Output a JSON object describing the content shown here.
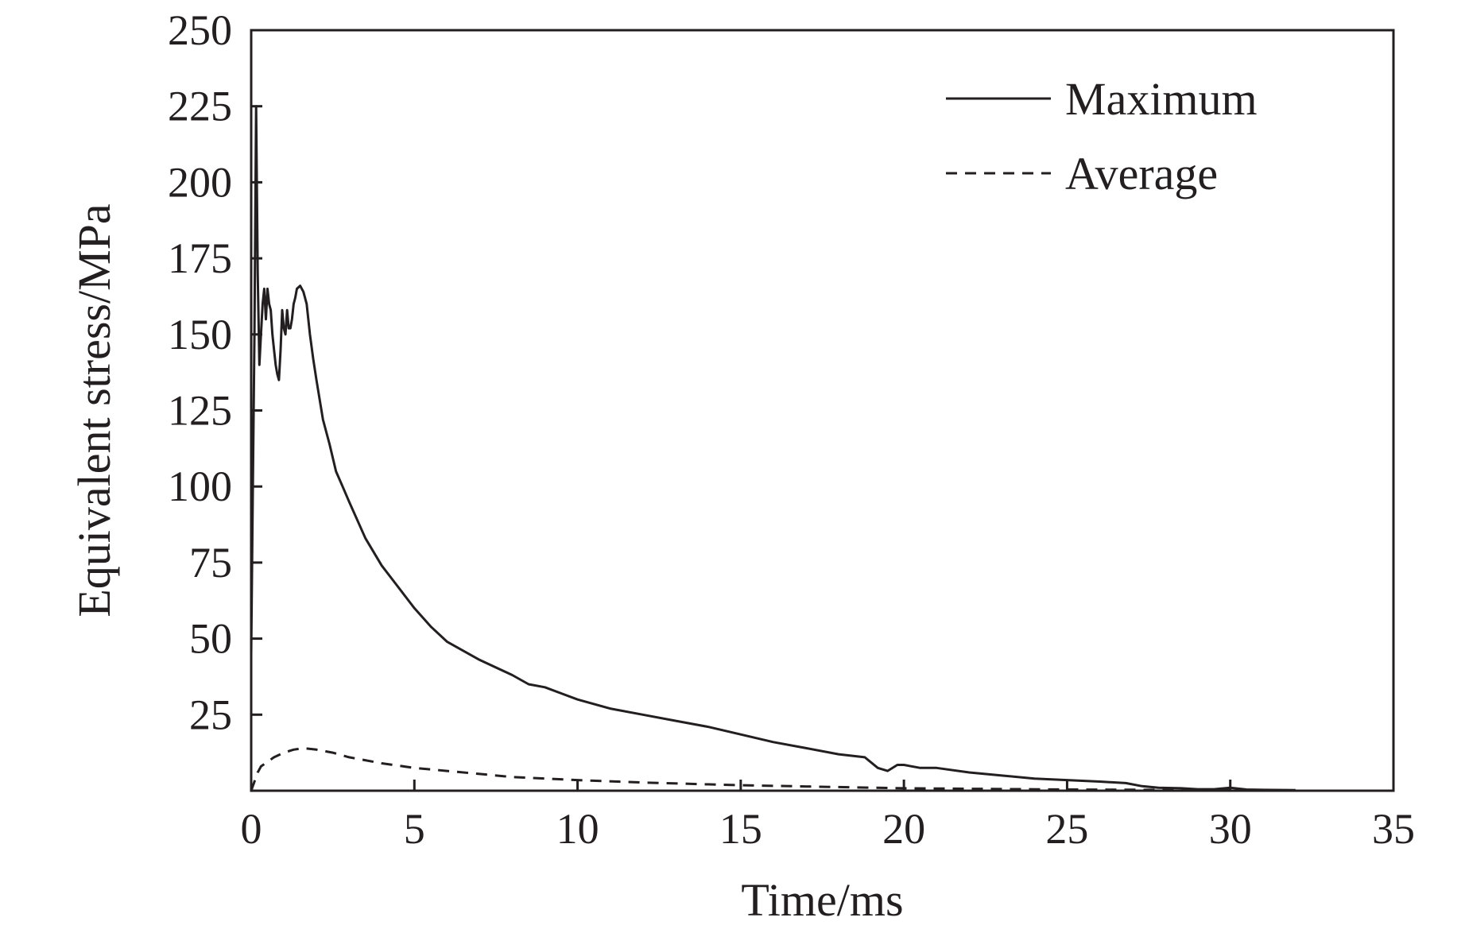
{
  "chart_data": {
    "type": "line",
    "title": "",
    "xlabel": "Time/ms",
    "ylabel": "Equivalent stress/MPa",
    "xlim": [
      0,
      35
    ],
    "ylim": [
      0,
      250
    ],
    "xticks": [
      0,
      5,
      10,
      15,
      20,
      25,
      30,
      35
    ],
    "yticks": [
      25,
      50,
      75,
      100,
      125,
      150,
      175,
      200,
      225,
      250
    ],
    "grid": false,
    "legend_position": "top-right",
    "colors": {
      "line": "#231f20",
      "axes": "#231f20"
    },
    "series": [
      {
        "name": "Maximum",
        "style": "solid",
        "x": [
          0,
          0.05,
          0.1,
          0.15,
          0.2,
          0.25,
          0.3,
          0.35,
          0.4,
          0.45,
          0.5,
          0.55,
          0.6,
          0.65,
          0.7,
          0.75,
          0.8,
          0.85,
          0.9,
          0.95,
          1.0,
          1.05,
          1.1,
          1.15,
          1.2,
          1.25,
          1.3,
          1.35,
          1.4,
          1.5,
          1.6,
          1.7,
          1.8,
          1.9,
          2.0,
          2.2,
          2.4,
          2.6,
          2.8,
          3.0,
          3.5,
          4.0,
          4.5,
          5.0,
          5.5,
          6.0,
          7.0,
          8.0,
          8.5,
          9.0,
          9.5,
          10.0,
          11.0,
          12.0,
          13.0,
          14.0,
          15.0,
          16.0,
          17.0,
          18.0,
          18.8,
          19.2,
          19.5,
          19.8,
          20.0,
          20.5,
          21.0,
          22.0,
          23.0,
          24.0,
          25.0,
          26.0,
          26.8,
          27.3,
          27.8,
          28.5,
          29.0,
          29.5,
          30.0,
          30.5,
          31.0,
          32.0
        ],
        "values": [
          45,
          100,
          150,
          225,
          170,
          140,
          150,
          160,
          165,
          155,
          165,
          160,
          158,
          150,
          145,
          140,
          137,
          135,
          145,
          158,
          152,
          150,
          158,
          152,
          152,
          155,
          160,
          162,
          165,
          166,
          164,
          160,
          150,
          142,
          135,
          122,
          114,
          105,
          100,
          95,
          83,
          74,
          67,
          60,
          54,
          49,
          43,
          38,
          35,
          34,
          32,
          30,
          27,
          25,
          23,
          21,
          18.5,
          16,
          14,
          12,
          11,
          7.5,
          6.5,
          8.5,
          8.5,
          7.5,
          7.5,
          6,
          5,
          4,
          3.5,
          3,
          2.5,
          1.5,
          1,
          0.8,
          0.5,
          0.5,
          1,
          0.4,
          0.3,
          0.2
        ]
      },
      {
        "name": "Average",
        "style": "dashed",
        "x": [
          0,
          0.1,
          0.2,
          0.3,
          0.5,
          0.7,
          1.0,
          1.3,
          1.6,
          2.0,
          2.5,
          3.0,
          4.0,
          5.0,
          6.0,
          7.0,
          8.0,
          10.0,
          12.0,
          15.0,
          18.0,
          20.0,
          25.0,
          30.0,
          32.0
        ],
        "values": [
          0,
          3,
          6,
          8,
          9.5,
          11,
          12.5,
          13.5,
          14,
          13.5,
          12.5,
          11,
          9,
          7.5,
          6.5,
          5.5,
          4.5,
          3.5,
          2.7,
          1.8,
          1.2,
          0.8,
          0.4,
          0.2,
          0.1
        ]
      }
    ]
  }
}
